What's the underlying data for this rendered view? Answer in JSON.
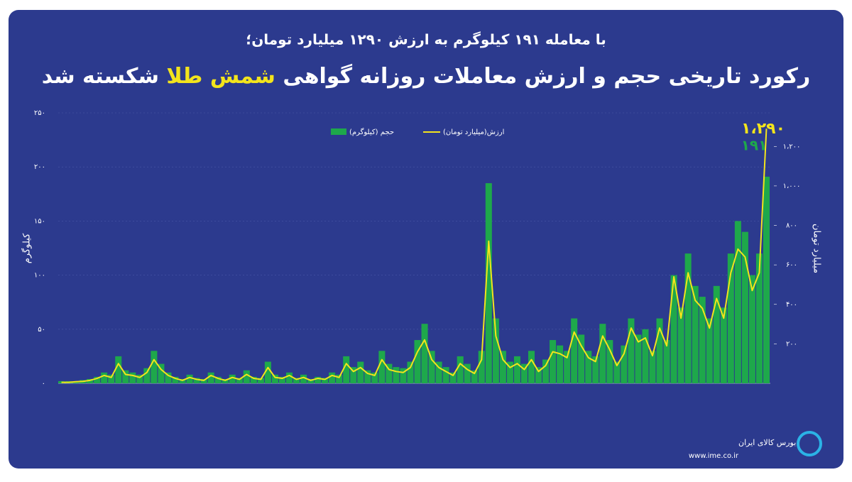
{
  "chart_data": {
    "type": "bar-line",
    "subtitle": "با معامله ۱۹۱ کیلوگرم به ارزش ۱۲۹۰ میلیارد تومان؛",
    "title_parts": [
      "رکورد تاریخی حجم و ارزش معاملات روزانه گواهی",
      "شمش طلا",
      "شکسته شد"
    ],
    "ylabel": "کیلوگرم",
    "y2label": "میلیارد تومان",
    "annotations": [
      "۱،۲۹۰",
      "۱۹۱"
    ],
    "source": [
      "بورس کالای ایران",
      "www.ime.co.ir"
    ],
    "ylim": [
      0,
      250
    ],
    "yticks": [
      {
        "value": 0,
        "label": "۰"
      },
      {
        "value": 50,
        "label": "۵۰"
      },
      {
        "value": 100,
        "label": "۱۰۰"
      },
      {
        "value": 150,
        "label": "۱۵۰"
      },
      {
        "value": 200,
        "label": "۲۰۰"
      },
      {
        "value": 250,
        "label": "۲۵۰"
      }
    ],
    "y2lim": [
      0,
      1370
    ],
    "y2ticks": [
      {
        "value": 200,
        "label": "۲۰۰"
      },
      {
        "value": 400,
        "label": "۴۰۰"
      },
      {
        "value": 600,
        "label": "۶۰۰"
      },
      {
        "value": 800,
        "label": "۸۰۰"
      },
      {
        "value": 1000,
        "label": "۱،۰۰۰"
      },
      {
        "value": 1200,
        "label": "۱،۲۰۰"
      }
    ],
    "categories": [
      null,
      null,
      null,
      null,
      null,
      null,
      null,
      null,
      null,
      null,
      null,
      null,
      null,
      null,
      null,
      null,
      null,
      null,
      null,
      null,
      null,
      null,
      null,
      null,
      null,
      null,
      null,
      null,
      null,
      null,
      null,
      null,
      null,
      null,
      null,
      null,
      null,
      null,
      null,
      null,
      null,
      null,
      null,
      null,
      null,
      null,
      null,
      null,
      null,
      null,
      null,
      null,
      null,
      null,
      null,
      null,
      null,
      null,
      null,
      null,
      null,
      null,
      null,
      null,
      null,
      null,
      null,
      null,
      null,
      null,
      null,
      null,
      null,
      null,
      null,
      null,
      null,
      null,
      null,
      null,
      null,
      null,
      null,
      null,
      null,
      null,
      null,
      null,
      null,
      null,
      null,
      null,
      null,
      null,
      null,
      null,
      null,
      null,
      null,
      null
    ],
    "series": [
      {
        "name": "حجم (کیلوگرم)",
        "color": "#1ea84b",
        "values": [
          2,
          2,
          2,
          3,
          4,
          6,
          10,
          8,
          25,
          12,
          10,
          8,
          14,
          30,
          18,
          10,
          6,
          4,
          8,
          5,
          4,
          10,
          6,
          4,
          8,
          5,
          12,
          6,
          5,
          20,
          8,
          6,
          10,
          5,
          8,
          4,
          6,
          5,
          10,
          8,
          25,
          15,
          20,
          12,
          10,
          30,
          18,
          15,
          14,
          20,
          40,
          55,
          30,
          20,
          15,
          10,
          25,
          18,
          12,
          30,
          185,
          60,
          30,
          20,
          25,
          18,
          30,
          15,
          22,
          40,
          35,
          30,
          60,
          45,
          30,
          25,
          55,
          40,
          20,
          35,
          60,
          45,
          50,
          30,
          60,
          40,
          100,
          70,
          120,
          90,
          80,
          60,
          90,
          70,
          120,
          150,
          140,
          100,
          120,
          191
        ]
      },
      {
        "name": "ارزش(میلیارد تومان)",
        "color": "#f3e41c",
        "axis": "y2",
        "values": [
          5,
          5,
          8,
          10,
          15,
          25,
          40,
          30,
          100,
          45,
          40,
          30,
          55,
          120,
          70,
          40,
          25,
          15,
          30,
          20,
          15,
          40,
          25,
          15,
          30,
          20,
          45,
          25,
          20,
          80,
          30,
          25,
          40,
          20,
          30,
          15,
          25,
          20,
          40,
          30,
          100,
          60,
          80,
          50,
          40,
          120,
          70,
          60,
          55,
          80,
          160,
          220,
          120,
          80,
          60,
          40,
          100,
          70,
          50,
          120,
          720,
          240,
          120,
          80,
          100,
          70,
          120,
          60,
          90,
          160,
          150,
          130,
          260,
          190,
          130,
          110,
          240,
          170,
          90,
          150,
          280,
          210,
          230,
          140,
          280,
          190,
          540,
          330,
          560,
          420,
          380,
          280,
          430,
          330,
          560,
          680,
          640,
          470,
          560,
          1290
        ]
      }
    ]
  }
}
